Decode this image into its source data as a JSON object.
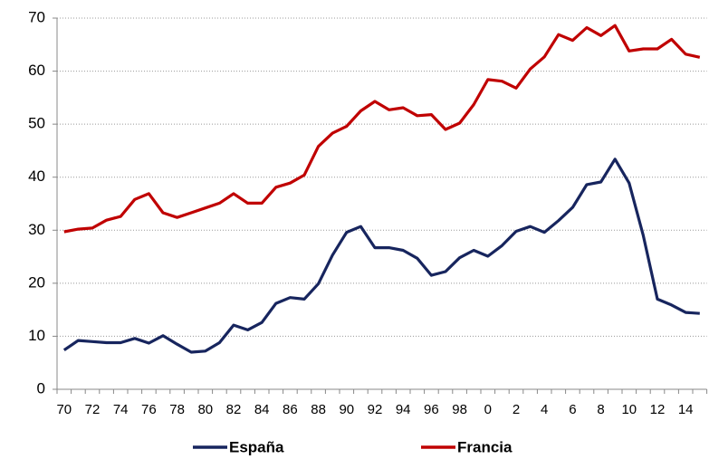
{
  "chart_data": {
    "type": "line",
    "categories": [
      "70",
      null,
      "72",
      null,
      "74",
      null,
      "76",
      null,
      "78",
      null,
      "80",
      null,
      "82",
      null,
      "84",
      null,
      "86",
      null,
      "88",
      null,
      "90",
      null,
      "92",
      null,
      "94",
      null,
      "96",
      null,
      "98",
      null,
      "0",
      null,
      "2",
      null,
      "4",
      null,
      "6",
      null,
      "8",
      null,
      "10",
      null,
      "12",
      null,
      "14",
      null
    ],
    "series": [
      {
        "name": "España",
        "color": "#17255e",
        "values": [
          7.4,
          9.2,
          9.0,
          8.8,
          8.8,
          9.6,
          8.7,
          10.1,
          8.5,
          7.0,
          7.2,
          8.8,
          12.1,
          11.2,
          12.6,
          16.2,
          17.3,
          17.0,
          19.9,
          25.3,
          29.6,
          30.7,
          26.7,
          26.7,
          26.2,
          24.7,
          21.5,
          22.2,
          24.8,
          26.2,
          25.1,
          27.1,
          29.8,
          30.7,
          29.6,
          31.8,
          34.3,
          38.6,
          39.1,
          43.4,
          38.9,
          29.0,
          17.0,
          15.9,
          14.5,
          14.3
        ]
      },
      {
        "name": "Francia",
        "color": "#c00000",
        "values": [
          29.7,
          30.2,
          30.4,
          31.9,
          32.6,
          35.8,
          36.9,
          33.3,
          32.4,
          33.3,
          34.2,
          35.1,
          36.9,
          35.1,
          35.1,
          38.1,
          38.9,
          40.4,
          45.8,
          48.3,
          49.6,
          52.5,
          54.3,
          52.7,
          53.1,
          51.6,
          51.8,
          49.0,
          50.2,
          53.7,
          58.4,
          58.1,
          56.8,
          60.4,
          62.7,
          66.9,
          65.8,
          68.2,
          66.7,
          68.6,
          63.8,
          64.2,
          64.2,
          66.0,
          63.2,
          62.6
        ]
      }
    ],
    "ylim": [
      0,
      70
    ],
    "yticks": [
      0,
      10,
      20,
      30,
      40,
      50,
      60,
      70
    ],
    "grid": true,
    "legend": "bottom"
  }
}
